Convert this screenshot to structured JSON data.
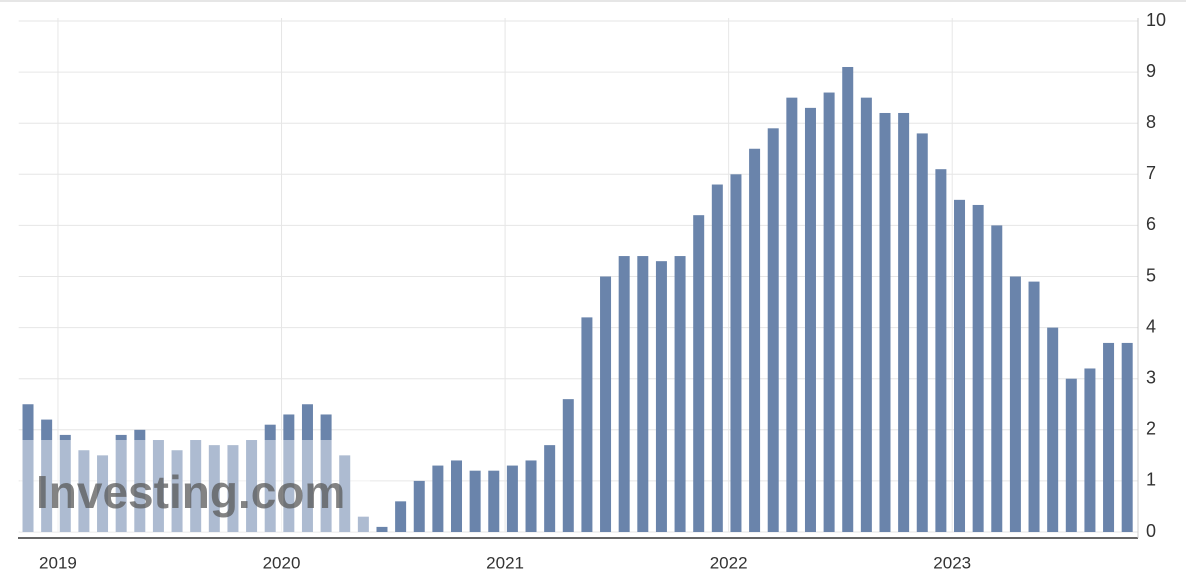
{
  "chart_data": {
    "type": "bar",
    "watermark": "Investing.com",
    "categories": [
      null,
      null,
      "2019",
      null,
      null,
      null,
      null,
      null,
      null,
      null,
      null,
      null,
      null,
      null,
      "2020",
      null,
      null,
      null,
      null,
      null,
      null,
      null,
      null,
      null,
      null,
      null,
      "2021",
      null,
      null,
      null,
      null,
      null,
      null,
      null,
      null,
      null,
      null,
      null,
      "2022",
      null,
      null,
      null,
      null,
      null,
      null,
      null,
      null,
      null,
      null,
      null,
      "2023",
      null,
      null,
      null,
      null,
      null,
      null,
      null,
      null,
      null
    ],
    "values": [
      2.5,
      2.2,
      1.9,
      1.6,
      1.5,
      1.9,
      2.0,
      1.8,
      1.6,
      1.8,
      1.7,
      1.7,
      1.8,
      2.1,
      2.3,
      2.5,
      2.3,
      1.5,
      0.3,
      0.1,
      0.6,
      1.0,
      1.3,
      1.4,
      1.2,
      1.2,
      1.3,
      1.4,
      1.7,
      2.6,
      4.2,
      5.0,
      5.4,
      5.4,
      5.3,
      5.4,
      6.2,
      6.8,
      7.0,
      7.5,
      7.9,
      8.5,
      8.3,
      8.6,
      9.1,
      8.5,
      8.2,
      8.2,
      7.8,
      7.1,
      6.5,
      6.4,
      6.0,
      5.0,
      4.9,
      4.0,
      3.0,
      3.2,
      3.7,
      3.7
    ],
    "color": "#6a84ab",
    "ylim": [
      0,
      10
    ],
    "yticks": [
      0,
      1,
      2,
      3,
      4,
      5,
      6,
      7,
      8,
      9,
      10
    ],
    "grid": true
  }
}
